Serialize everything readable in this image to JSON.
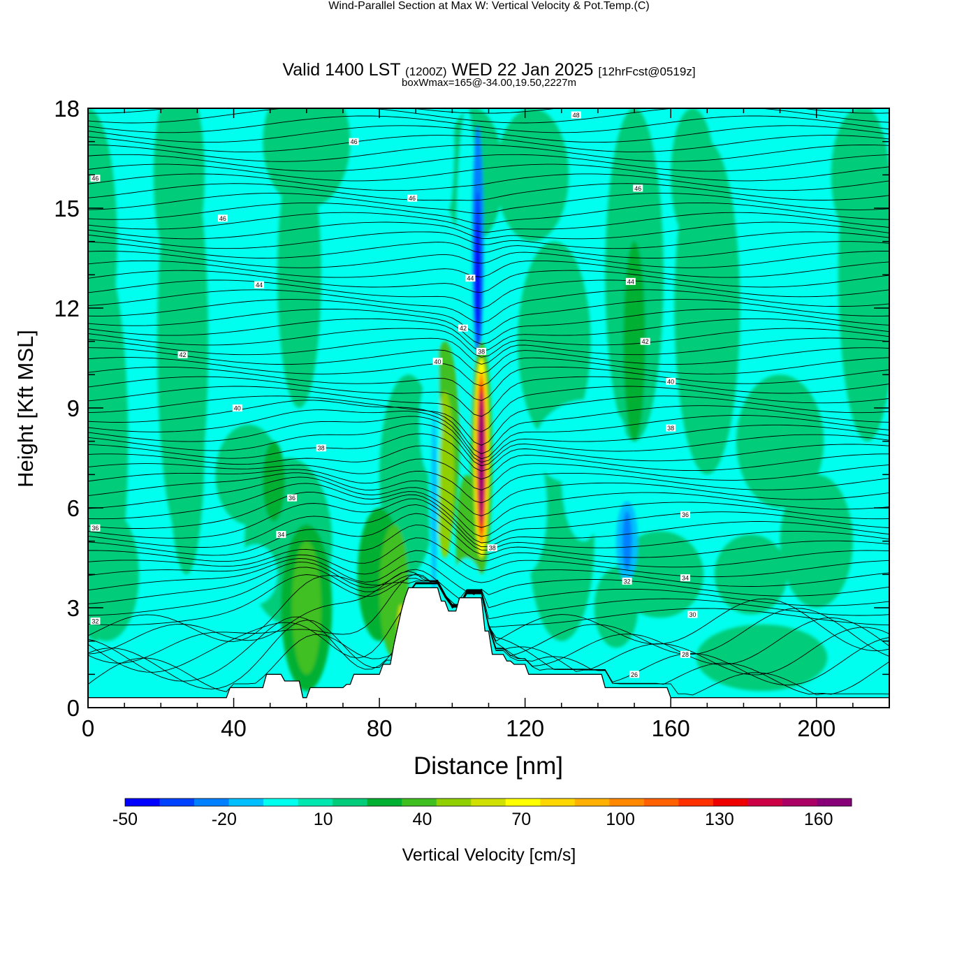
{
  "title": {
    "main": "Wind-Parallel Section at Max W: Vertical Velocity & Pot.Temp.",
    "copyright": "(C)",
    "valid_prefix": "Valid 1400 LST",
    "valid_utc": "(1200Z)",
    "valid_date": "WED 22 Jan 2025",
    "forecast": "[12hrFcst@0519z]",
    "box_info": "boxWmax=165@-34.00,19.50,2227m"
  },
  "colors": {
    "background": "#00ffee",
    "green": "#00dd99",
    "frame": "#000000"
  },
  "chart_data": {
    "type": "contour",
    "title": "Wind-Parallel Section at Max W: Vertical Velocity & Pot.Temp.",
    "xlabel": "Distance [nm]",
    "ylabel": "Height [Kft MSL]",
    "xlim": [
      0,
      220
    ],
    "ylim": [
      0,
      18
    ],
    "x_ticks": [
      0,
      40,
      80,
      120,
      160,
      200
    ],
    "y_ticks": [
      0,
      3,
      6,
      9,
      12,
      15,
      18
    ],
    "filled_field": "Vertical Velocity [cm/s]",
    "colorbar": {
      "label": "Vertical Velocity [cm/s]",
      "bounds": [
        -50,
        170
      ],
      "step": 10,
      "tick_labels": [
        "-50",
        "-20",
        "10",
        "40",
        "70",
        "100",
        "130",
        "160"
      ],
      "colors": [
        "#0000ff",
        "#0040ff",
        "#0080ff",
        "#00bfff",
        "#00ffee",
        "#00e8b0",
        "#00cc7a",
        "#00b030",
        "#40c020",
        "#90d000",
        "#d0e000",
        "#ffff00",
        "#ffd700",
        "#ffb000",
        "#ff8800",
        "#ff6000",
        "#ff3000",
        "#ee0000",
        "#cc0044",
        "#aa0066",
        "#880077"
      ]
    },
    "max_updraft": {
      "x": 108,
      "y": 7.5,
      "value": 165
    },
    "downdraft_core": {
      "x": 107,
      "y": 13.5,
      "value": -50
    },
    "terrain_profile": {
      "x": [
        0,
        38,
        39,
        48,
        49,
        53,
        54,
        58,
        59,
        60,
        61,
        70,
        71,
        72,
        73,
        80,
        81,
        83,
        84,
        85,
        86,
        87,
        88,
        96,
        97,
        98,
        99,
        101,
        102,
        108,
        109,
        110,
        111,
        114,
        115,
        116,
        117,
        120,
        121,
        141,
        142,
        159,
        160,
        220
      ],
      "y": [
        0.3,
        0.3,
        0.6,
        0.6,
        1.0,
        1.0,
        0.8,
        0.8,
        0.3,
        0.3,
        0.6,
        0.6,
        0.7,
        0.7,
        1.0,
        1.0,
        1.3,
        1.3,
        1.9,
        2.4,
        2.9,
        3.3,
        3.6,
        3.6,
        3.2,
        3.2,
        2.9,
        2.9,
        3.3,
        3.3,
        2.3,
        2.3,
        1.6,
        1.6,
        1.4,
        1.4,
        1.3,
        1.3,
        1.0,
        1.0,
        0.6,
        0.6,
        0.3,
        0.3
      ]
    },
    "isentrope_levels": [
      26,
      28,
      30,
      32,
      34,
      36,
      38,
      40,
      42,
      44,
      46,
      48
    ],
    "isentrope_labels": [
      {
        "text": "46",
        "x": 2,
        "y": 15.9
      },
      {
        "text": "46",
        "x": 37,
        "y": 14.7
      },
      {
        "text": "46",
        "x": 73,
        "y": 17.0
      },
      {
        "text": "46",
        "x": 89,
        "y": 15.3
      },
      {
        "text": "48",
        "x": 134,
        "y": 17.8
      },
      {
        "text": "46",
        "x": 151,
        "y": 15.6
      },
      {
        "text": "44",
        "x": 47,
        "y": 12.7
      },
      {
        "text": "44",
        "x": 105,
        "y": 12.9
      },
      {
        "text": "44",
        "x": 149,
        "y": 12.8
      },
      {
        "text": "42",
        "x": 26,
        "y": 10.6
      },
      {
        "text": "42",
        "x": 103,
        "y": 11.4
      },
      {
        "text": "42",
        "x": 153,
        "y": 11.0
      },
      {
        "text": "40",
        "x": 41,
        "y": 9.0
      },
      {
        "text": "40",
        "x": 96,
        "y": 10.4
      },
      {
        "text": "40",
        "x": 160,
        "y": 9.8
      },
      {
        "text": "38",
        "x": 64,
        "y": 7.8
      },
      {
        "text": "38",
        "x": 108,
        "y": 10.7
      },
      {
        "text": "38",
        "x": 160,
        "y": 8.4
      },
      {
        "text": "38",
        "x": 111,
        "y": 4.8
      },
      {
        "text": "36",
        "x": 2,
        "y": 5.4
      },
      {
        "text": "36",
        "x": 56,
        "y": 6.3
      },
      {
        "text": "36",
        "x": 164,
        "y": 5.8
      },
      {
        "text": "34",
        "x": 53,
        "y": 5.2
      },
      {
        "text": "34",
        "x": 164,
        "y": 3.9
      },
      {
        "text": "32",
        "x": 2,
        "y": 2.6
      },
      {
        "text": "32",
        "x": 148,
        "y": 3.8
      },
      {
        "text": "30",
        "x": 166,
        "y": 2.8
      },
      {
        "text": "28",
        "x": 164,
        "y": 1.6
      },
      {
        "text": "26",
        "x": 150,
        "y": 1.0
      }
    ]
  }
}
